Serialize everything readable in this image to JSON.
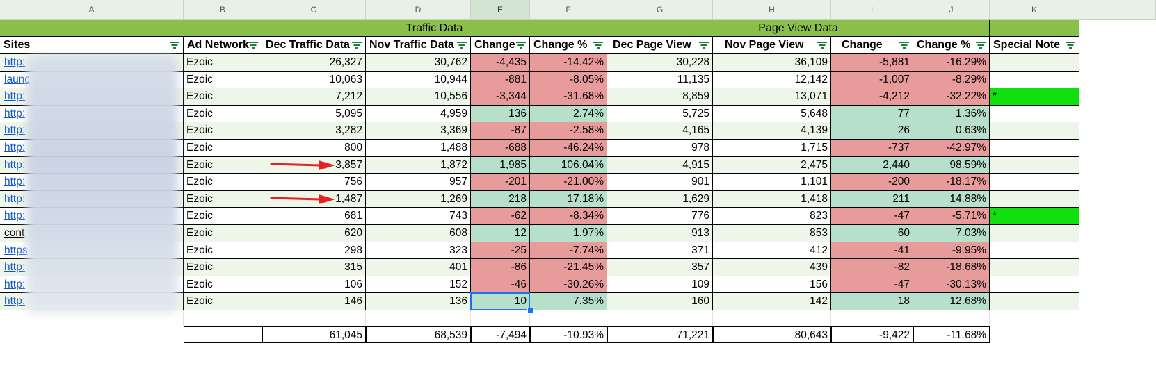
{
  "column_letters": [
    "A",
    "B",
    "C",
    "D",
    "E",
    "F",
    "G",
    "H",
    "I",
    "J",
    "K"
  ],
  "selected_column": "E",
  "groups": {
    "traffic": "Traffic Data",
    "pageview": "Page View Data"
  },
  "headers": [
    "Sites",
    "Ad Network",
    "Dec Traffic Data",
    "Nov Traffic Data",
    "Change",
    "Change %",
    "Dec Page View",
    "Nov Page View",
    "Change",
    "Change %",
    "Special Note"
  ],
  "rows": [
    {
      "site": "http:",
      "network": "Ezoic",
      "dec": "26,327",
      "nov": "30,762",
      "chg": "-4,435",
      "pct": "-14.42%",
      "pv_dec": "30,228",
      "pv_nov": "36,109",
      "pv_chg": "-5,881",
      "pv_pct": "-16.29%",
      "note": "",
      "t": "neg",
      "p": "neg"
    },
    {
      "site": "launc",
      "network": "Ezoic",
      "dec": "10,063",
      "nov": "10,944",
      "chg": "-881",
      "pct": "-8.05%",
      "pv_dec": "11,135",
      "pv_nov": "12,142",
      "pv_chg": "-1,007",
      "pv_pct": "-8.29%",
      "note": "",
      "t": "neg",
      "p": "neg"
    },
    {
      "site": "http:",
      "network": "Ezoic",
      "dec": "7,212",
      "nov": "10,556",
      "chg": "-3,344",
      "pct": "-31.68%",
      "pv_dec": "8,859",
      "pv_nov": "13,071",
      "pv_chg": "-4,212",
      "pv_pct": "-32.22%",
      "note": "*",
      "t": "neg",
      "p": "neg"
    },
    {
      "site": "http:",
      "network": "Ezoic",
      "dec": "5,095",
      "nov": "4,959",
      "chg": "136",
      "pct": "2.74%",
      "pv_dec": "5,725",
      "pv_nov": "5,648",
      "pv_chg": "77",
      "pv_pct": "1.36%",
      "note": "",
      "t": "pos",
      "p": "pos"
    },
    {
      "site": "http:",
      "network": "Ezoic",
      "dec": "3,282",
      "nov": "3,369",
      "chg": "-87",
      "pct": "-2.58%",
      "pv_dec": "4,165",
      "pv_nov": "4,139",
      "pv_chg": "26",
      "pv_pct": "0.63%",
      "note": "",
      "t": "neg",
      "p": "pos"
    },
    {
      "site": "http:",
      "network": "Ezoic",
      "dec": "800",
      "nov": "1,488",
      "chg": "-688",
      "pct": "-46.24%",
      "pv_dec": "978",
      "pv_nov": "1,715",
      "pv_chg": "-737",
      "pv_pct": "-42.97%",
      "note": "",
      "t": "neg",
      "p": "neg"
    },
    {
      "site": "http:",
      "network": "Ezoic",
      "dec": "3,857",
      "nov": "1,872",
      "chg": "1,985",
      "pct": "106.04%",
      "pv_dec": "4,915",
      "pv_nov": "2,475",
      "pv_chg": "2,440",
      "pv_pct": "98.59%",
      "note": "",
      "t": "pos",
      "p": "pos"
    },
    {
      "site": "http:",
      "network": "Ezoic",
      "dec": "756",
      "nov": "957",
      "chg": "-201",
      "pct": "-21.00%",
      "pv_dec": "901",
      "pv_nov": "1,101",
      "pv_chg": "-200",
      "pv_pct": "-18.17%",
      "note": "",
      "t": "neg",
      "p": "neg"
    },
    {
      "site": "http:",
      "network": "Ezoic",
      "dec": "1,487",
      "nov": "1,269",
      "chg": "218",
      "pct": "17.18%",
      "pv_dec": "1,629",
      "pv_nov": "1,418",
      "pv_chg": "211",
      "pv_pct": "14.88%",
      "note": "",
      "t": "pos",
      "p": "pos"
    },
    {
      "site": "http:",
      "network": "Ezoic",
      "dec": "681",
      "nov": "743",
      "chg": "-62",
      "pct": "-8.34%",
      "pv_dec": "776",
      "pv_nov": "823",
      "pv_chg": "-47",
      "pv_pct": "-5.71%",
      "note": "*",
      "t": "neg",
      "p": "neg"
    },
    {
      "site": "cont",
      "network": "Ezoic",
      "dec": "620",
      "nov": "608",
      "chg": "12",
      "pct": "1.97%",
      "pv_dec": "913",
      "pv_nov": "853",
      "pv_chg": "60",
      "pv_pct": "7.03%",
      "note": "",
      "t": "pos",
      "p": "pos"
    },
    {
      "site": "https",
      "network": "Ezoic",
      "dec": "298",
      "nov": "323",
      "chg": "-25",
      "pct": "-7.74%",
      "pv_dec": "371",
      "pv_nov": "412",
      "pv_chg": "-41",
      "pv_pct": "-9.95%",
      "note": "",
      "t": "neg",
      "p": "neg"
    },
    {
      "site": "http:",
      "network": "Ezoic",
      "dec": "315",
      "nov": "401",
      "chg": "-86",
      "pct": "-21.45%",
      "pv_dec": "357",
      "pv_nov": "439",
      "pv_chg": "-82",
      "pv_pct": "-18.68%",
      "note": "",
      "t": "neg",
      "p": "neg"
    },
    {
      "site": "http:",
      "network": "Ezoic",
      "dec": "106",
      "nov": "152",
      "chg": "-46",
      "pct": "-30.26%",
      "pv_dec": "109",
      "pv_nov": "156",
      "pv_chg": "-47",
      "pv_pct": "-30.13%",
      "note": "",
      "t": "neg",
      "p": "neg"
    },
    {
      "site": "http:",
      "network": "Ezoic",
      "dec": "146",
      "nov": "136",
      "chg": "10",
      "pct": "7.35%",
      "pv_dec": "160",
      "pv_nov": "142",
      "pv_chg": "18",
      "pv_pct": "12.68%",
      "note": "",
      "t": "pos",
      "p": "pos"
    }
  ],
  "totals": {
    "dec": "61,045",
    "nov": "68,539",
    "chg": "-7,494",
    "pct": "-10.93%",
    "pv_dec": "71,221",
    "pv_nov": "80,643",
    "pv_chg": "-9,422",
    "pv_pct": "-11.68%"
  },
  "colors": {
    "band": "#8bbf4b",
    "negative": "#e89b9b",
    "positive": "#b7e0cb",
    "note_highlight": "#11e00f",
    "row_alt": "#eef5e9",
    "arrow": "#e52222",
    "selection": "#1a73e8"
  },
  "arrow_rows": [
    6,
    8
  ],
  "selected_cell": {
    "row": 14,
    "column": "E"
  }
}
